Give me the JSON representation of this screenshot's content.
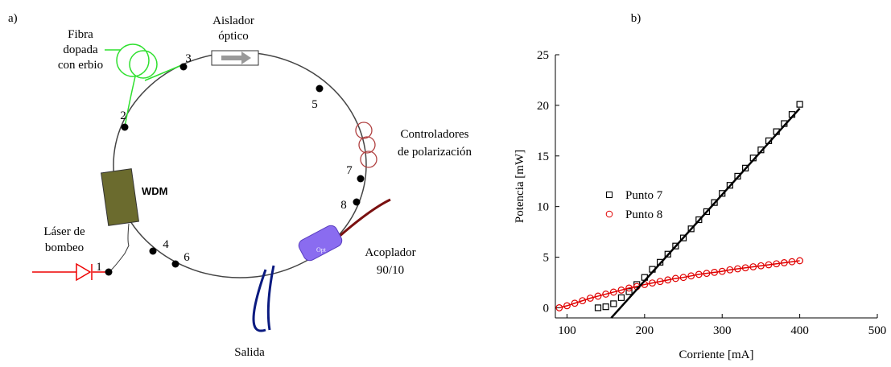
{
  "panel_a": {
    "label": "a)",
    "fibra": [
      "Fibra",
      "dopada",
      "con erbio"
    ],
    "aislador": [
      "Aislador",
      "óptico"
    ],
    "controladores": [
      "Controladores",
      "de polarización"
    ],
    "wdm": "WDM",
    "laser": [
      "Láser de",
      "bombeo"
    ],
    "acoplador": [
      "Acoplador",
      "90/10"
    ],
    "opt": "Opt",
    "salida": "Salida",
    "points": [
      "1",
      "2",
      "3",
      "4",
      "5",
      "6",
      "7",
      "8"
    ]
  },
  "chart_data": {
    "type": "scatter",
    "panel_label": "b)",
    "x_label": "Corriente [mA]",
    "y_label": "Potencia [mW]",
    "xlim": [
      85,
      500
    ],
    "ylim": [
      -1,
      25
    ],
    "xticks": [
      100,
      200,
      300,
      400,
      500
    ],
    "yticks": [
      0,
      5,
      10,
      15,
      20,
      25
    ],
    "legend": "center-left",
    "series": [
      {
        "name": "Punto 7",
        "color": "#000000",
        "marker": "square",
        "x": [
          140,
          150,
          160,
          170,
          180,
          190,
          200,
          210,
          220,
          230,
          240,
          250,
          260,
          270,
          280,
          290,
          300,
          310,
          320,
          330,
          340,
          350,
          360,
          370,
          380,
          390,
          400
        ],
        "values": [
          0,
          0.1,
          0.4,
          1,
          1.6,
          2.3,
          3,
          3.8,
          4.5,
          5.3,
          6.1,
          6.9,
          7.8,
          8.7,
          9.5,
          10.4,
          11.3,
          12.1,
          13,
          13.8,
          14.8,
          15.6,
          16.5,
          17.4,
          18.2,
          19.1,
          20.1
        ]
      },
      {
        "name": "Punto 8",
        "color": "#e00000",
        "marker": "circle",
        "fit_line": true,
        "x": [
          90,
          100,
          110,
          120,
          130,
          140,
          150,
          160,
          170,
          180,
          190,
          200,
          210,
          220,
          230,
          240,
          250,
          260,
          270,
          280,
          290,
          300,
          310,
          320,
          330,
          340,
          350,
          360,
          370,
          380,
          390,
          400
        ],
        "values": [
          0,
          0.2,
          0.45,
          0.7,
          0.95,
          1.15,
          1.35,
          1.55,
          1.75,
          1.95,
          2.1,
          2.3,
          2.45,
          2.6,
          2.75,
          2.9,
          3,
          3.15,
          3.3,
          3.4,
          3.5,
          3.6,
          3.75,
          3.85,
          3.95,
          4.05,
          4.15,
          4.25,
          4.35,
          4.45,
          4.55,
          4.65
        ]
      },
      {
        "color": "#000000",
        "marker": "line",
        "x": [
          157,
          400
        ],
        "values": [
          -1,
          19.7
        ]
      }
    ]
  }
}
